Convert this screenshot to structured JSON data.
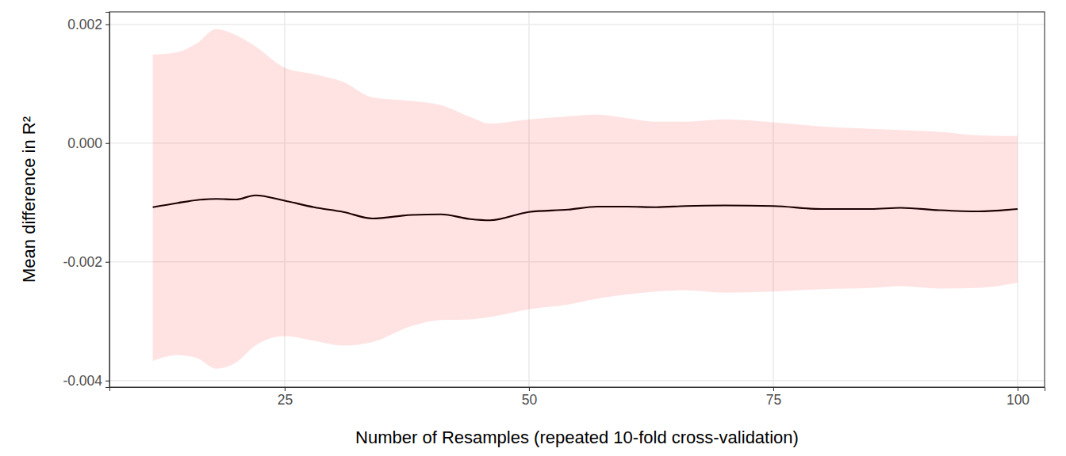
{
  "chart_data": {
    "type": "line",
    "x_label": "Number of Resamples (repeated 10-fold cross-validation)",
    "y_label": "Mean difference in R²",
    "x": [
      11.5,
      14,
      16,
      18,
      20,
      22,
      25,
      28,
      31,
      34,
      38,
      41,
      44,
      46,
      50,
      54,
      57,
      60,
      63,
      66,
      70,
      75,
      80,
      85,
      88,
      92,
      96,
      100
    ],
    "series": [
      {
        "color": "#1a0000",
        "values": [
          -0.00108,
          -0.00101,
          -0.00096,
          -0.00094,
          -0.00095,
          -0.00088,
          -0.00097,
          -0.00108,
          -0.00116,
          -0.00127,
          -0.00121,
          -0.0012,
          -0.00128,
          -0.0013,
          -0.00116,
          -0.00112,
          -0.00107,
          -0.00107,
          -0.00108,
          -0.00106,
          -0.00105,
          -0.00106,
          -0.00111,
          -0.00111,
          -0.00109,
          -0.00113,
          -0.00115,
          -0.00111
        ],
        "lower": [
          -0.00367,
          -0.00357,
          -0.00362,
          -0.0038,
          -0.0037,
          -0.00341,
          -0.00325,
          -0.00333,
          -0.00341,
          -0.00335,
          -0.00308,
          -0.00298,
          -0.00297,
          -0.00293,
          -0.0028,
          -0.00272,
          -0.00262,
          -0.00255,
          -0.0025,
          -0.00248,
          -0.00252,
          -0.0025,
          -0.00246,
          -0.00244,
          -0.00241,
          -0.00245,
          -0.00244,
          -0.00235
        ],
        "upper": [
          0.00149,
          0.00153,
          0.00168,
          0.00192,
          0.00182,
          0.00163,
          0.00127,
          0.00116,
          0.00103,
          0.00077,
          0.00071,
          0.00064,
          0.00044,
          0.00033,
          0.0004,
          0.00045,
          0.00048,
          0.00042,
          0.00036,
          0.00036,
          0.0004,
          0.00035,
          0.00028,
          0.00024,
          0.00022,
          0.00019,
          0.00013,
          0.00012
        ]
      }
    ],
    "xlim": [
      7.07,
      102.76
    ],
    "xticks": [
      25,
      50,
      75,
      100
    ],
    "ylim": [
      -0.00411,
      0.00221
    ],
    "yticks": [
      {
        "value": -0.004,
        "label": "-0.004"
      },
      {
        "value": -0.002,
        "label": "-0.002"
      },
      {
        "value": 0,
        "label": "0.000"
      },
      {
        "value": 0.002,
        "label": "0.002"
      }
    ],
    "grid": true
  }
}
